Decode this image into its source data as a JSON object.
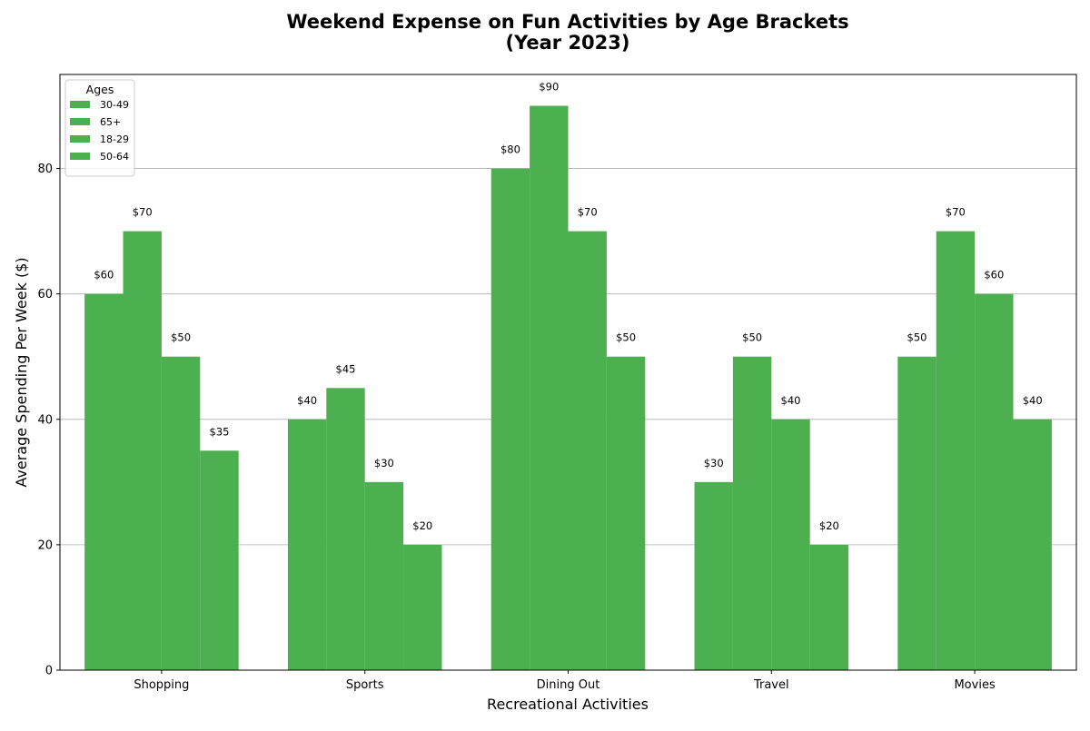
{
  "chart_data": {
    "type": "bar",
    "title_lines": [
      "Weekend Expense on Fun Activities by Age Brackets",
      "(Year 2023)"
    ],
    "xlabel": "Recreational Activities",
    "ylabel": "Average Spending Per Week ($)",
    "categories": [
      "Shopping",
      "Sports",
      "Dining Out",
      "Travel",
      "Movies"
    ],
    "series": [
      {
        "name": "30-49",
        "values": [
          60,
          40,
          80,
          30,
          50
        ]
      },
      {
        "name": "65+",
        "values": [
          70,
          45,
          90,
          50,
          70
        ]
      },
      {
        "name": "18-29",
        "values": [
          50,
          30,
          70,
          40,
          60
        ]
      },
      {
        "name": "50-64",
        "values": [
          35,
          20,
          50,
          20,
          40
        ]
      }
    ],
    "label_prefix": "$",
    "ylim": [
      0,
      95
    ],
    "yticks": [
      "0",
      "20",
      "40",
      "60",
      "80"
    ],
    "grid": "y",
    "legend": {
      "title": "Ages",
      "placement": "top-left"
    },
    "bar_color": "#4caf50"
  }
}
